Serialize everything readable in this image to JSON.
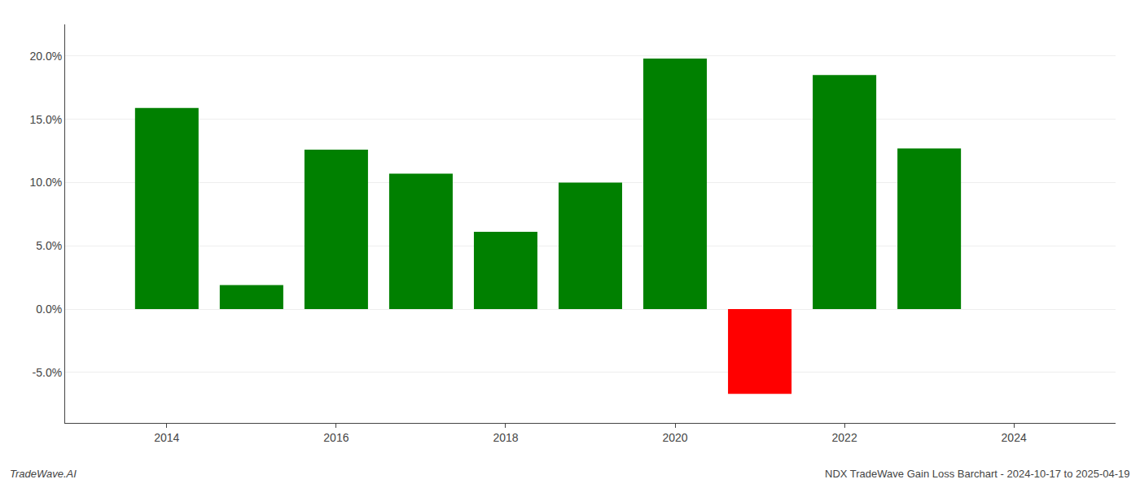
{
  "chart_data": {
    "type": "bar",
    "x": [
      2014,
      2015,
      2016,
      2017,
      2018,
      2019,
      2020,
      2021,
      2022,
      2023
    ],
    "values": [
      0.159,
      0.019,
      0.126,
      0.107,
      0.061,
      0.1,
      0.198,
      -0.067,
      0.185,
      0.127
    ],
    "colors": [
      "#008000",
      "#008000",
      "#008000",
      "#008000",
      "#008000",
      "#008000",
      "#008000",
      "#ff0000",
      "#008000",
      "#008000"
    ],
    "xlim": [
      2012.8,
      2025.2
    ],
    "xticks": [
      2014,
      2016,
      2018,
      2020,
      2022,
      2024
    ],
    "ylim": [
      -0.09,
      0.225
    ],
    "yticks": [
      {
        "value": -0.05,
        "label": "-5.0%"
      },
      {
        "value": 0.0,
        "label": "0.0%"
      },
      {
        "value": 0.05,
        "label": "5.0%"
      },
      {
        "value": 0.1,
        "label": "10.0%"
      },
      {
        "value": 0.15,
        "label": "15.0%"
      },
      {
        "value": 0.2,
        "label": "20.0%"
      }
    ],
    "grid": true,
    "annotations": [
      "TradeWave.AI",
      "NDX TradeWave Gain Loss Barchart - 2024-10-17 to 2025-04-19"
    ]
  }
}
